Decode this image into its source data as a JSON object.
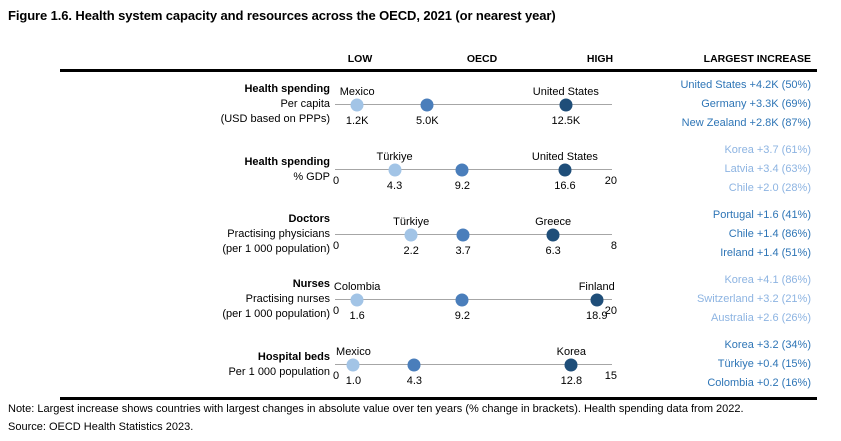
{
  "title": "Figure 1.6. Health system capacity and resources across the OECD, 2021 (or nearest year)",
  "headers": {
    "low": "LOW",
    "oecd": "OECD",
    "high": "HIGH",
    "largest_increase": "LARGEST INCREASE"
  },
  "colors": {
    "dot_low": "#A2C4E6",
    "dot_oecd": "#4A7EBB",
    "dot_high": "#1F4E79",
    "axis_line": "#A6A6A6",
    "increase_dark": "#2E75B6",
    "increase_light": "#8DB4E2"
  },
  "chart_data": [
    {
      "type": "scatter",
      "indicator": "Health spending",
      "sub_labels": [
        "Per capita",
        "(USD based on PPPs)"
      ],
      "axis": {
        "min": 0,
        "max": 15000,
        "min_label": "",
        "max_label": ""
      },
      "points": [
        {
          "role": "low",
          "country": "Mexico",
          "show_country": true,
          "value": 1200,
          "value_label": "1.2K"
        },
        {
          "role": "oecd",
          "country": "OECD",
          "show_country": false,
          "value": 5000,
          "value_label": "5.0K"
        },
        {
          "role": "high",
          "country": "United States",
          "show_country": true,
          "value": 12500,
          "value_label": "12.5K"
        }
      ],
      "largest_increase": {
        "tone": "dark",
        "lines": [
          "United States +4.2K (50%)",
          "Germany +3.3K (69%)",
          "New Zealand +2.8K (87%)"
        ]
      }
    },
    {
      "type": "scatter",
      "indicator": "Health spending",
      "sub_labels": [
        "% GDP"
      ],
      "axis": {
        "min": 0,
        "max": 20,
        "min_label": "0",
        "max_label": "20"
      },
      "points": [
        {
          "role": "low",
          "country": "Türkiye",
          "show_country": true,
          "value": 4.3,
          "value_label": "4.3"
        },
        {
          "role": "oecd",
          "country": "OECD",
          "show_country": false,
          "value": 9.2,
          "value_label": "9.2"
        },
        {
          "role": "high",
          "country": "United States",
          "show_country": true,
          "value": 16.6,
          "value_label": "16.6"
        }
      ],
      "largest_increase": {
        "tone": "light",
        "lines": [
          "Korea +3.7 (61%)",
          "Latvia +3.4 (63%)",
          "Chile +2.0 (28%)"
        ]
      }
    },
    {
      "type": "scatter",
      "indicator": "Doctors",
      "sub_labels": [
        "Practising physicians",
        "(per 1 000 population)"
      ],
      "axis": {
        "min": 0,
        "max": 8,
        "min_label": "0",
        "max_label": "8"
      },
      "points": [
        {
          "role": "low",
          "country": "Türkiye",
          "show_country": true,
          "value": 2.2,
          "value_label": "2.2"
        },
        {
          "role": "oecd",
          "country": "OECD",
          "show_country": false,
          "value": 3.7,
          "value_label": "3.7"
        },
        {
          "role": "high",
          "country": "Greece",
          "show_country": true,
          "value": 6.3,
          "value_label": "6.3"
        }
      ],
      "largest_increase": {
        "tone": "dark",
        "lines": [
          "Portugal +1.6 (41%)",
          "Chile +1.4 (86%)",
          "Ireland +1.4 (51%)"
        ]
      }
    },
    {
      "type": "scatter",
      "indicator": "Nurses",
      "sub_labels": [
        "Practising nurses",
        "(per 1 000 population)"
      ],
      "axis": {
        "min": 0,
        "max": 20,
        "min_label": "0",
        "max_label": "20"
      },
      "points": [
        {
          "role": "low",
          "country": "Colombia",
          "show_country": true,
          "value": 1.6,
          "value_label": "1.6"
        },
        {
          "role": "oecd",
          "country": "OECD",
          "show_country": false,
          "value": 9.2,
          "value_label": "9.2"
        },
        {
          "role": "high",
          "country": "Finland",
          "show_country": true,
          "value": 18.9,
          "value_label": "18.9"
        }
      ],
      "largest_increase": {
        "tone": "light",
        "lines": [
          "Korea +4.1 (86%)",
          "Switzerland +3.2 (21%)",
          "Australia +2.6 (26%)"
        ]
      }
    },
    {
      "type": "scatter",
      "indicator": "Hospital beds",
      "sub_labels": [
        "Per 1 000 population"
      ],
      "axis": {
        "min": 0,
        "max": 15,
        "min_label": "0",
        "max_label": "15"
      },
      "points": [
        {
          "role": "low",
          "country": "Mexico",
          "show_country": true,
          "value": 1.0,
          "value_label": "1.0"
        },
        {
          "role": "oecd",
          "country": "OECD",
          "show_country": false,
          "value": 4.3,
          "value_label": "4.3"
        },
        {
          "role": "high",
          "country": "Korea",
          "show_country": true,
          "value": 12.8,
          "value_label": "12.8"
        }
      ],
      "largest_increase": {
        "tone": "dark",
        "lines": [
          "Korea +3.2 (34%)",
          "Türkiye +0.4 (15%)",
          "Colombia +0.2 (16%)"
        ]
      }
    }
  ],
  "note": "Note: Largest increase shows countries with largest changes in absolute value over ten years (% change in brackets). Health spending data from 2022.",
  "source": "Source: OECD Health Statistics 2023."
}
